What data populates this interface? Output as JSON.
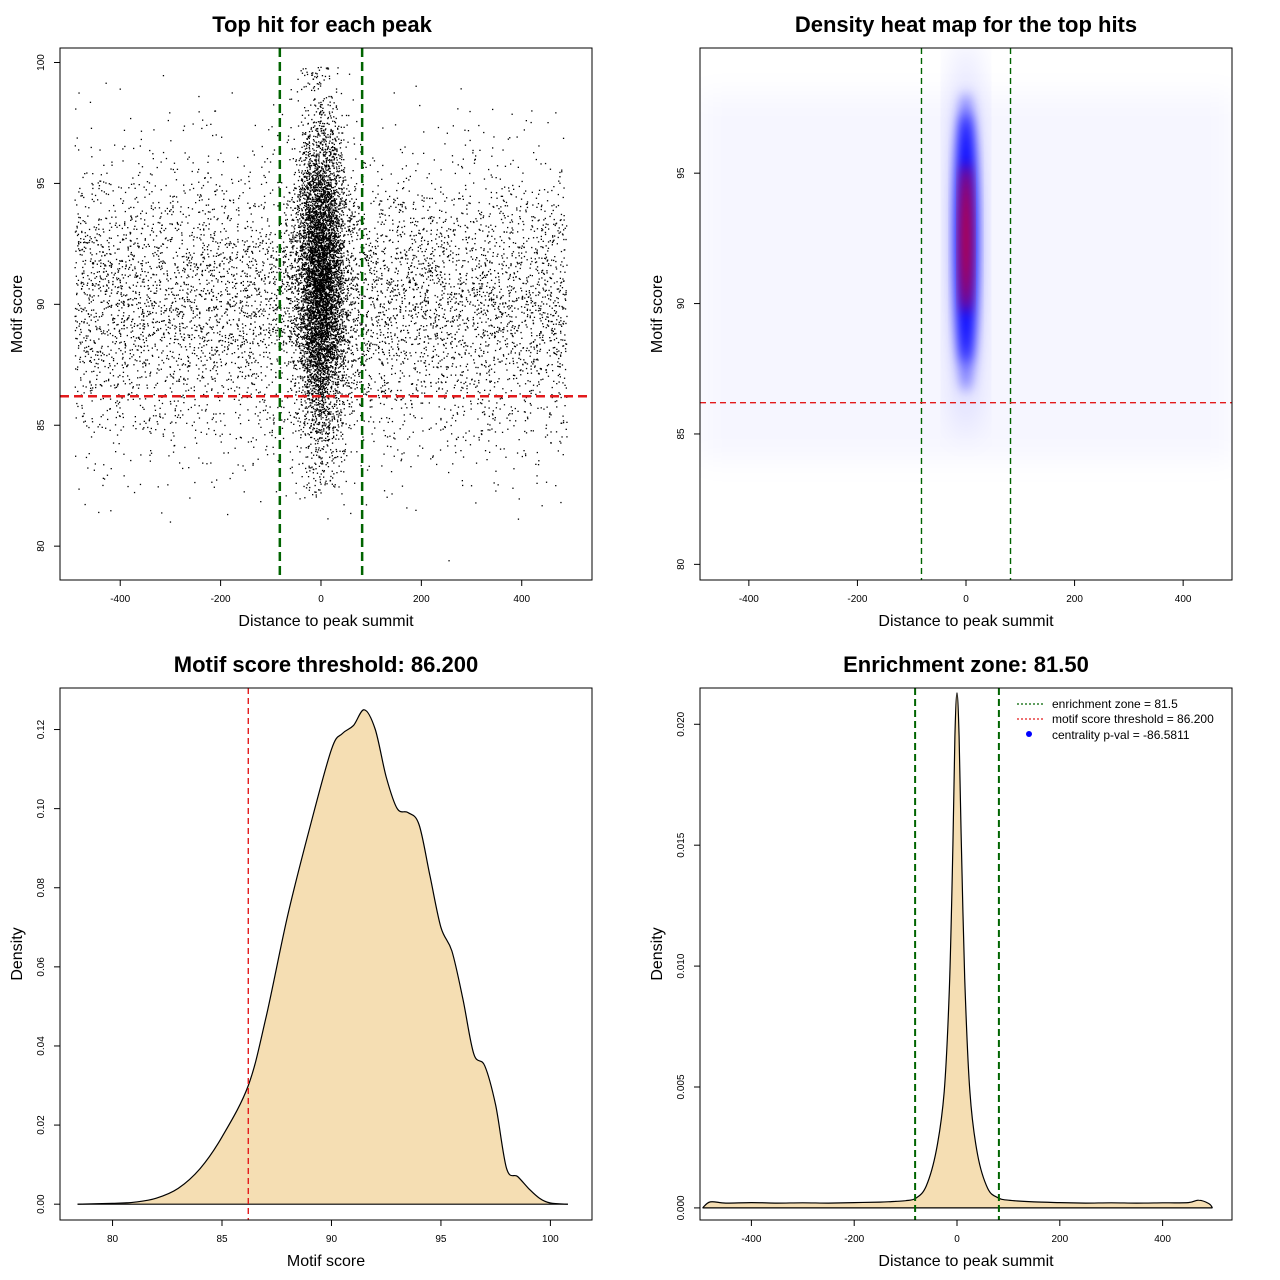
{
  "chart_data": [
    {
      "type": "scatter",
      "title": "Top hit for each peak",
      "xlabel": "Distance to peak summit",
      "ylabel": "Motif score",
      "xlim": [
        -520,
        540
      ],
      "ylim": [
        78.6,
        100.6
      ],
      "x_ticks": [
        -400,
        -200,
        0,
        200,
        400
      ],
      "y_ticks": [
        80,
        85,
        90,
        95,
        100
      ],
      "x_tick_labels": [
        "-400",
        "-200",
        "0",
        "200",
        "400"
      ],
      "y_tick_labels": [
        "80",
        "85",
        "90",
        "95",
        "100"
      ],
      "description_of_points": "Thousands of black points. Background: x uniform in [-490, 490], y roughly normal around 90 (sd ~3). Dense central column: x concentrated around 0 (sd ~25), y from ~82 to ~99.8.",
      "sample_points": [
        {
          "x": -490,
          "y": 89.5
        },
        {
          "x": -400,
          "y": 98.9
        },
        {
          "x": -300,
          "y": 81.0
        },
        {
          "x": -200,
          "y": 93.0
        },
        {
          "x": 0,
          "y": 99.8
        },
        {
          "x": 0,
          "y": 91.0
        },
        {
          "x": 0,
          "y": 82.2
        },
        {
          "x": 200,
          "y": 88.0
        },
        {
          "x": 300,
          "y": 82.5
        },
        {
          "x": 420,
          "y": 98.0
        },
        {
          "x": 490,
          "y": 89.5
        },
        {
          "x": 255,
          "y": 79.4
        }
      ],
      "vlines": [
        {
          "x": -82,
          "color": "#006400",
          "style": "dashed"
        },
        {
          "x": 82,
          "color": "#006400",
          "style": "dashed"
        }
      ],
      "hlines": [
        {
          "y": 86.2,
          "color": "#e31a1c",
          "style": "dashed"
        }
      ],
      "grid": false
    },
    {
      "type": "heatmap",
      "title": "Density heat map for the top hits",
      "xlabel": "Distance to peak summit",
      "ylabel": "Motif score",
      "xlim": [
        -490,
        490
      ],
      "ylim": [
        79.4,
        99.8
      ],
      "x_ticks": [
        -400,
        -200,
        0,
        200,
        400
      ],
      "y_ticks": [
        80,
        85,
        90,
        95
      ],
      "x_tick_labels": [
        "-400",
        "-200",
        "0",
        "200",
        "400"
      ],
      "y_tick_labels": [
        "80",
        "85",
        "90",
        "95"
      ],
      "color_scale": [
        "#ffffff",
        "#0000ff",
        "#ff0000"
      ],
      "peak": {
        "x": 0,
        "y": 92.5
      },
      "vlines": [
        {
          "x": -82,
          "color": "#006400",
          "style": "dashed"
        },
        {
          "x": 82,
          "color": "#006400",
          "style": "dashed"
        }
      ],
      "hlines": [
        {
          "y": 86.2,
          "color": "#e31a1c",
          "style": "dashed"
        }
      ],
      "grid": false
    },
    {
      "type": "area",
      "title": "Motif score threshold: 86.200",
      "xlabel": "Motif score",
      "ylabel": "Density",
      "xlim": [
        77.6,
        101.9
      ],
      "ylim": [
        -0.004,
        0.1305
      ],
      "x_ticks": [
        80,
        85,
        90,
        95,
        100
      ],
      "y_ticks": [
        0.0,
        0.02,
        0.04,
        0.06,
        0.08,
        0.1,
        0.12
      ],
      "x_tick_labels": [
        "80",
        "85",
        "90",
        "95",
        "100"
      ],
      "y_tick_labels": [
        "0.00",
        "0.02",
        "0.04",
        "0.06",
        "0.08",
        "0.10",
        "0.12"
      ],
      "fill_color": "#f5deb3",
      "x": [
        78.4,
        80.0,
        81.0,
        82.0,
        83.0,
        84.0,
        85.0,
        86.2,
        87.0,
        88.0,
        89.0,
        90.0,
        90.5,
        91.0,
        91.5,
        92.0,
        92.5,
        93.0,
        93.5,
        94.0,
        94.5,
        95.0,
        95.5,
        96.0,
        96.5,
        97.0,
        97.5,
        98.0,
        98.5,
        99.0,
        99.5,
        100.0,
        100.8
      ],
      "y": [
        0.0,
        0.0002,
        0.0005,
        0.0015,
        0.004,
        0.009,
        0.017,
        0.03,
        0.047,
        0.073,
        0.095,
        0.115,
        0.119,
        0.121,
        0.125,
        0.12,
        0.108,
        0.1,
        0.099,
        0.096,
        0.083,
        0.07,
        0.064,
        0.052,
        0.038,
        0.035,
        0.025,
        0.009,
        0.007,
        0.004,
        0.0015,
        0.0003,
        0.0
      ],
      "vlines": [
        {
          "x": 86.2,
          "color": "#e31a1c",
          "style": "dashed"
        }
      ],
      "grid": false
    },
    {
      "type": "area",
      "title": "Enrichment zone: 81.50",
      "xlabel": "Distance to peak summit",
      "ylabel": "Density",
      "xlim": [
        -500,
        535
      ],
      "ylim": [
        -0.0005,
        0.0215
      ],
      "x_ticks": [
        -400,
        -200,
        0,
        200,
        400
      ],
      "y_ticks": [
        0.0,
        0.005,
        0.01,
        0.015,
        0.02
      ],
      "x_tick_labels": [
        "-400",
        "-200",
        "0",
        "200",
        "400"
      ],
      "y_tick_labels": [
        "0.000",
        "0.005",
        "0.010",
        "0.015",
        "0.020"
      ],
      "fill_color": "#f5deb3",
      "x": [
        -495,
        -480,
        -450,
        -400,
        -350,
        -300,
        -250,
        -200,
        -150,
        -120,
        -100,
        -80,
        -60,
        -40,
        -25,
        -15,
        -8,
        -4,
        0,
        4,
        8,
        15,
        25,
        40,
        60,
        80,
        100,
        150,
        200,
        250,
        300,
        350,
        400,
        450,
        470,
        490,
        497
      ],
      "y": [
        0.0,
        0.00025,
        0.0002,
        0.00022,
        0.0002,
        0.00021,
        0.0002,
        0.00022,
        0.00024,
        0.00027,
        0.0003,
        0.0004,
        0.0009,
        0.0024,
        0.0048,
        0.009,
        0.015,
        0.0195,
        0.0213,
        0.0195,
        0.0155,
        0.0095,
        0.0048,
        0.0022,
        0.0008,
        0.00042,
        0.00032,
        0.00025,
        0.00022,
        0.0002,
        0.00021,
        0.0002,
        0.00021,
        0.00022,
        0.00032,
        0.00018,
        0.0
      ],
      "vlines": [
        {
          "x": -81.5,
          "color": "#006400",
          "style": "dashed"
        },
        {
          "x": 81.5,
          "color": "#006400",
          "style": "dashed"
        }
      ],
      "legend": {
        "position": "top-right",
        "entries": [
          {
            "label": "enrichment zone = 81.5",
            "color": "#006400",
            "style": "dotted"
          },
          {
            "label": "motif score threshold = 86.200",
            "color": "#e31a1c",
            "style": "dotted"
          },
          {
            "label": "centrality p-val = -86.5811",
            "color": "#0000ff",
            "style": "point"
          }
        ]
      },
      "grid": false
    }
  ]
}
